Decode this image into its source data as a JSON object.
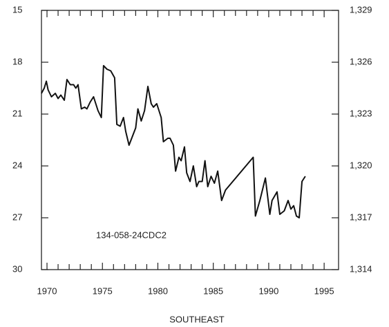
{
  "chart_data": {
    "type": "line",
    "annotation": "134-058-24CDC2",
    "xlabel": "SOUTHEAST",
    "x": [
      1969.5,
      1969.75,
      1969.94,
      1970.1,
      1970.4,
      1970.75,
      1971.0,
      1971.25,
      1971.56,
      1971.8,
      1972.1,
      1972.4,
      1972.6,
      1972.8,
      1973.1,
      1973.4,
      1973.6,
      1973.9,
      1974.2,
      1974.6,
      1974.9,
      1975.1,
      1975.4,
      1975.75,
      1976.1,
      1976.3,
      1976.6,
      1976.9,
      1977.1,
      1977.4,
      1977.7,
      1978.0,
      1978.2,
      1978.5,
      1978.8,
      1979.1,
      1979.4,
      1979.6,
      1979.9,
      1980.3,
      1980.5,
      1980.9,
      1981.1,
      1981.4,
      1981.6,
      1981.9,
      1982.1,
      1982.4,
      1982.6,
      1982.9,
      1983.2,
      1983.5,
      1983.7,
      1984.0,
      1984.25,
      1984.5,
      1984.8,
      1985.1,
      1985.4,
      1985.75,
      1986.1,
      1988.6,
      1988.8,
      1989.2,
      1989.7,
      1990.1,
      1990.3,
      1990.75,
      1991.0,
      1991.4,
      1991.75,
      1992.0,
      1992.25,
      1992.5,
      1992.75,
      1993.0,
      1993.3
    ],
    "series": [
      {
        "color": "#111111",
        "values": [
          19.8,
          19.5,
          19.1,
          19.6,
          20.0,
          19.8,
          20.1,
          19.9,
          20.2,
          19.0,
          19.3,
          19.3,
          19.5,
          19.3,
          20.7,
          20.6,
          20.7,
          20.3,
          20.0,
          20.8,
          21.2,
          18.2,
          18.4,
          18.5,
          18.9,
          21.6,
          21.7,
          21.2,
          22.0,
          22.8,
          22.3,
          21.8,
          20.7,
          21.4,
          20.8,
          19.4,
          20.4,
          20.6,
          20.4,
          21.2,
          22.6,
          22.4,
          22.4,
          22.8,
          24.3,
          23.5,
          23.7,
          22.9,
          24.4,
          24.9,
          24.0,
          25.2,
          24.9,
          24.9,
          23.7,
          25.2,
          24.6,
          25.0,
          24.3,
          26.0,
          25.4,
          23.5,
          26.9,
          26.0,
          24.7,
          26.8,
          26.0,
          25.5,
          26.8,
          26.6,
          26.0,
          26.5,
          26.3,
          26.9,
          27.0,
          24.9,
          24.6
        ]
      }
    ],
    "xlim": [
      1969.5,
      1996.3
    ],
    "xticks": [
      1970,
      1975,
      1980,
      1985,
      1990,
      1995
    ],
    "ylim": [
      30,
      15
    ],
    "yticks": [
      15,
      18,
      21,
      24,
      27,
      30
    ],
    "y2lim": [
      1314,
      1329
    ],
    "y2ticks": [
      {
        "value": 1329,
        "label": "1,329"
      },
      {
        "value": 1326,
        "label": "1,326"
      },
      {
        "value": 1323,
        "label": "1,323"
      },
      {
        "value": 1320,
        "label": "1,320"
      },
      {
        "value": 1317,
        "label": "1,317"
      },
      {
        "value": 1314,
        "label": "1,314"
      }
    ]
  }
}
